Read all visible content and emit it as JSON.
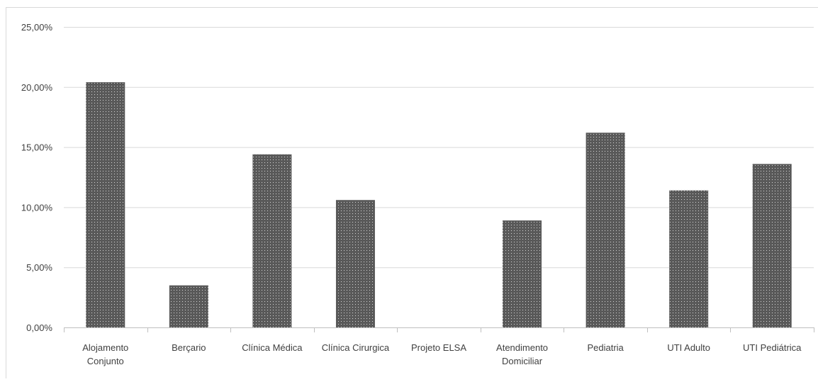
{
  "chart_data": {
    "type": "bar",
    "title": "",
    "xlabel": "",
    "ylabel": "",
    "categories": [
      [
        "Alojamento",
        "Conjunto"
      ],
      [
        "Berçario"
      ],
      [
        "Clínica Médica"
      ],
      [
        "Clínica Cirurgica"
      ],
      [
        "Projeto ELSA"
      ],
      [
        "Atendimento",
        "Domiciliar"
      ],
      [
        "Pediatria"
      ],
      [
        "UTI Adulto"
      ],
      [
        "UTI Pediátrica"
      ]
    ],
    "values": [
      20.4,
      3.5,
      14.4,
      10.6,
      0,
      8.9,
      16.2,
      11.4,
      13.6
    ],
    "ylim": [
      0,
      25
    ],
    "yticks": [
      0,
      5,
      10,
      15,
      20,
      25
    ],
    "ytick_labels": [
      "0,00%",
      "5,00%",
      "10,00%",
      "15,00%",
      "20,00%",
      "25,00%"
    ],
    "grid": true,
    "legend": "none",
    "colors": {
      "bar_fill": "#595959",
      "bar_dot": "#d9d9d9",
      "gridline": "#d9d9d9",
      "axis": "#bfbfbf",
      "text": "#404040"
    }
  }
}
